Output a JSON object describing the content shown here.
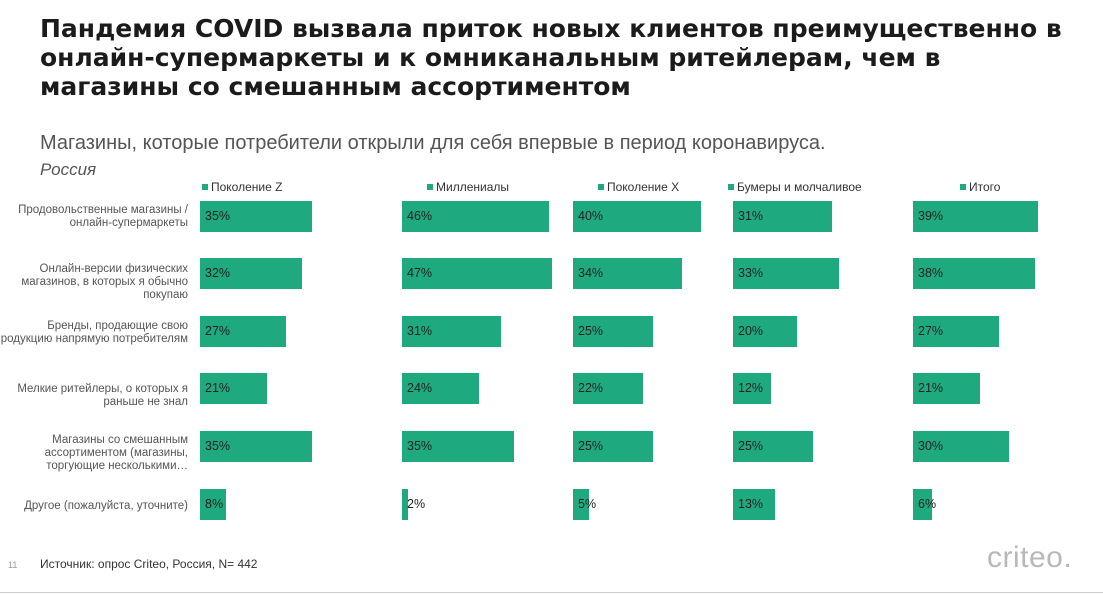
{
  "title": "Пандемия COVID вызвала приток новых клиентов преимущественно в онлайн-супермаркеты и к омниканальным ритейлерам, чем в магазины со смешанным ассортиментом",
  "footer": {
    "page_number": "11",
    "source": "Источник: опрос Criteo, Россия, N= 442",
    "logo": "criteo."
  },
  "colors": {
    "bar": "#1fa97f"
  },
  "chart_data": {
    "type": "bar",
    "orientation": "horizontal",
    "layout": "small-multiples",
    "title": "Магазины, которые потребители открыли для себя впервые в период коронавируса.",
    "subtitle": "Россия",
    "value_suffix": "%",
    "categories": [
      "Продовольственные магазины / онлайн-супермаркеты",
      "Онлайн-версии физических магазинов, в которых я обычно покупаю",
      "Бренды, продающие свою продукцию напрямую потребителям",
      "Мелкие ритейлеры, о которых я раньше не знал",
      "Магазины со смешанным ассортиментом (магазины, торгующие несколькими…",
      "Другое (пожалуйста, уточните)"
    ],
    "series": [
      {
        "name": "Поколение Z",
        "values": [
          35,
          32,
          27,
          21,
          35,
          8
        ]
      },
      {
        "name": "Миллениалы",
        "values": [
          46,
          47,
          31,
          24,
          35,
          2
        ]
      },
      {
        "name": "Поколение X",
        "values": [
          40,
          34,
          25,
          22,
          25,
          5
        ]
      },
      {
        "name": "Бумеры и молчаливое",
        "values": [
          31,
          33,
          20,
          12,
          25,
          13
        ]
      },
      {
        "name": "Итого",
        "values": [
          39,
          38,
          27,
          21,
          30,
          6
        ]
      }
    ]
  }
}
